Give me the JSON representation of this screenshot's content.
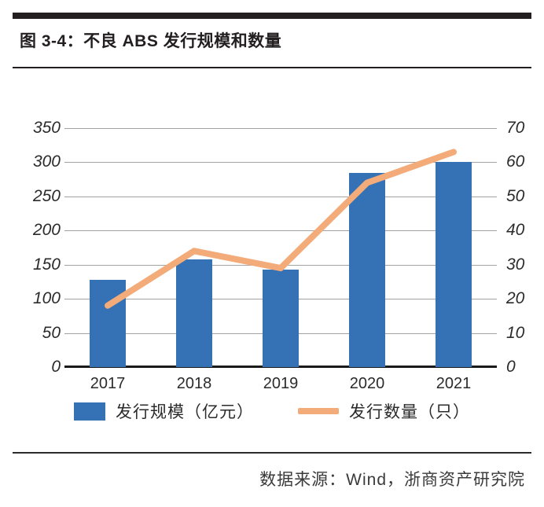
{
  "header": {
    "title": "图 3-4：不良 ABS 发行规模和数量"
  },
  "chart_data": {
    "type": "bar",
    "subtype": "combo-bar-line",
    "title": "不良 ABS 发行规模和数量",
    "categories": [
      "2017",
      "2018",
      "2019",
      "2020",
      "2021"
    ],
    "series": [
      {
        "name": "发行规模（亿元）",
        "type": "bar",
        "axis": "left",
        "color": "#3572B5",
        "values": [
          128,
          158,
          143,
          285,
          300
        ]
      },
      {
        "name": "发行数量（只）",
        "type": "line",
        "axis": "right",
        "color": "#F2AB79",
        "values": [
          18,
          34,
          29,
          54,
          63
        ]
      }
    ],
    "left_axis": {
      "min": 0,
      "max": 350,
      "ticks": [
        350,
        300,
        250,
        200,
        150,
        100,
        50,
        0
      ]
    },
    "right_axis": {
      "min": 0,
      "max": 70,
      "ticks": [
        70,
        60,
        50,
        40,
        30,
        20,
        10,
        0
      ]
    },
    "grid": true,
    "legend_position": "bottom",
    "colors": {
      "gridline": "#a3a3a3",
      "axis_line": "#1a1a1a",
      "tick_text": "#2b2b2b"
    }
  },
  "footer": {
    "source": "数据来源：Wind，浙商资产研究院"
  }
}
